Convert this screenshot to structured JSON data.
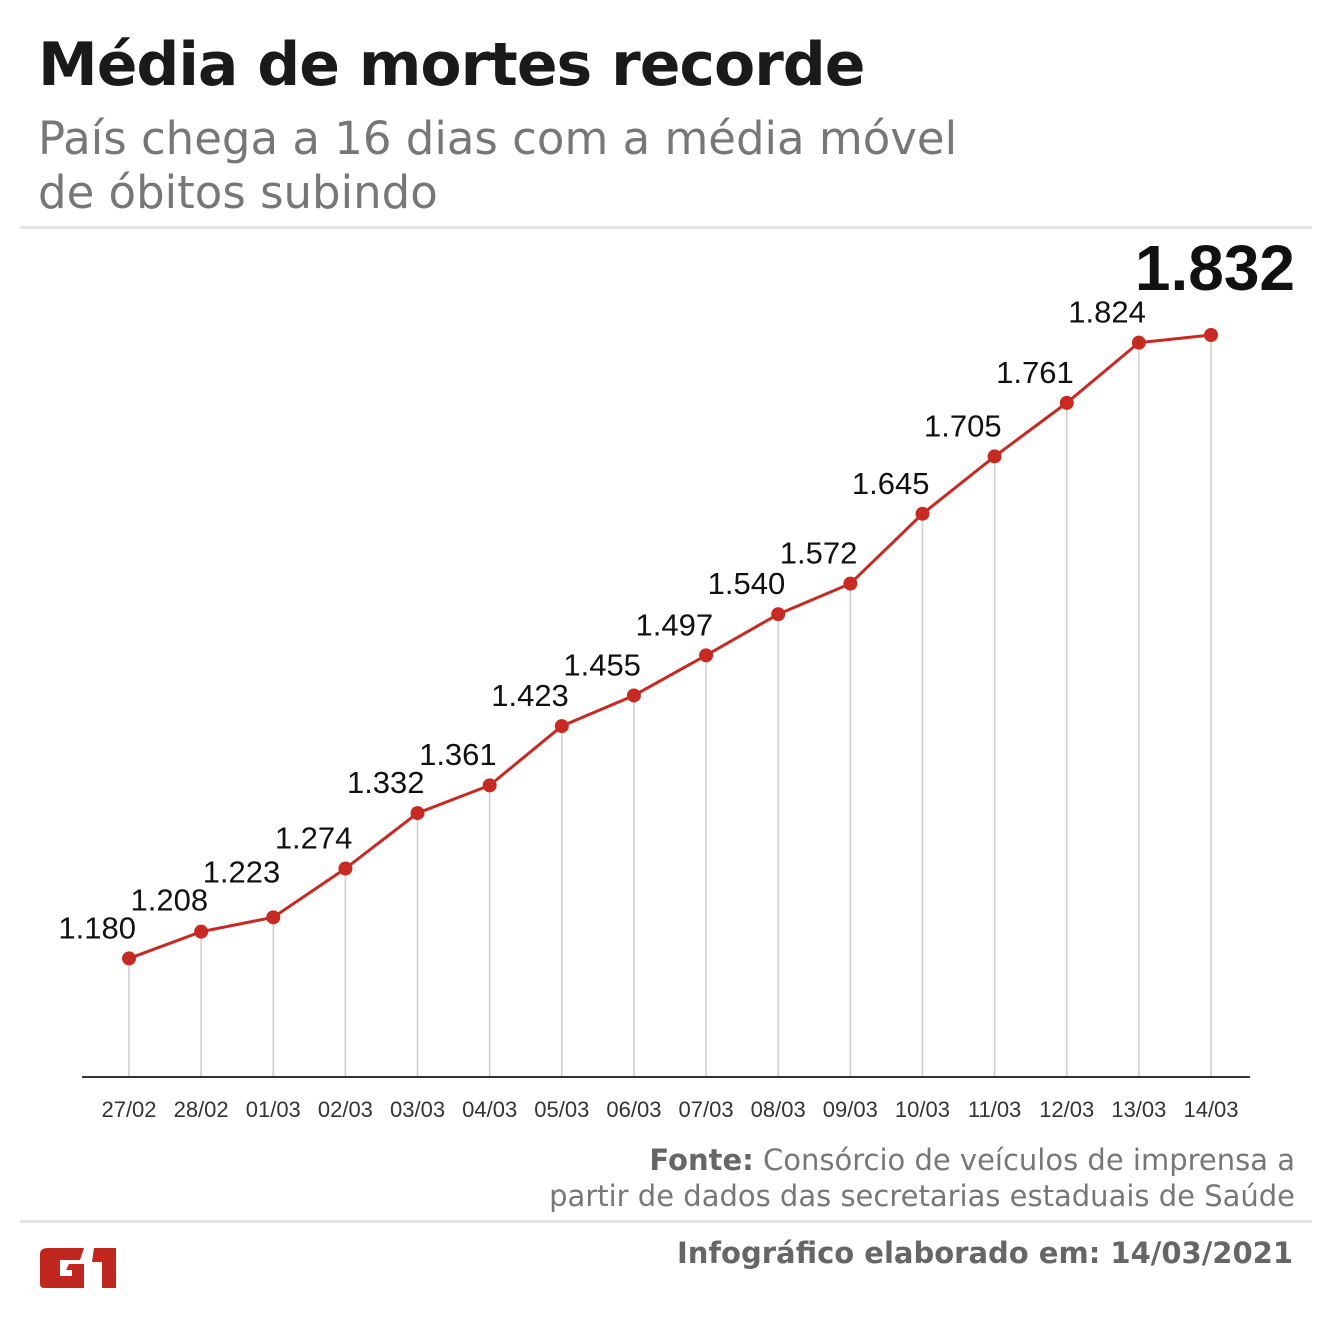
{
  "header": {
    "title": "Média de mortes recorde",
    "subtitle_line1": "País chega a 16 dias com a média móvel",
    "subtitle_line2": "de óbitos subindo"
  },
  "source": {
    "label": "Fonte:",
    "line1": "Consórcio de veículos de imprensa a",
    "line2": "partir de dados das secretarias estaduais de Saúde"
  },
  "footer": {
    "text": "Infográfico elaborado em: 14/03/2021",
    "logo": "G1"
  },
  "colors": {
    "line": "#c62a22",
    "grid": "#cccccc",
    "axis": "#333333",
    "logo": "#c0281f"
  },
  "chart_data": {
    "type": "line",
    "title": "Média de mortes recorde",
    "xlabel": "",
    "ylabel": "",
    "categories": [
      "27/02",
      "28/02",
      "01/03",
      "02/03",
      "03/03",
      "04/03",
      "05/03",
      "06/03",
      "07/03",
      "08/03",
      "09/03",
      "10/03",
      "11/03",
      "12/03",
      "13/03",
      "14/03"
    ],
    "values": [
      1180,
      1208,
      1223,
      1274,
      1332,
      1361,
      1423,
      1455,
      1497,
      1540,
      1572,
      1645,
      1705,
      1761,
      1824,
      1832
    ],
    "labels": [
      "1.180",
      "1.208",
      "1.223",
      "1.274",
      "1.332",
      "1.361",
      "1.423",
      "1.455",
      "1.497",
      "1.540",
      "1.572",
      "1.645",
      "1.705",
      "1.761",
      "1.824",
      "1.832"
    ],
    "ylim": [
      1056,
      1832
    ],
    "grid": false,
    "legend": "none"
  }
}
